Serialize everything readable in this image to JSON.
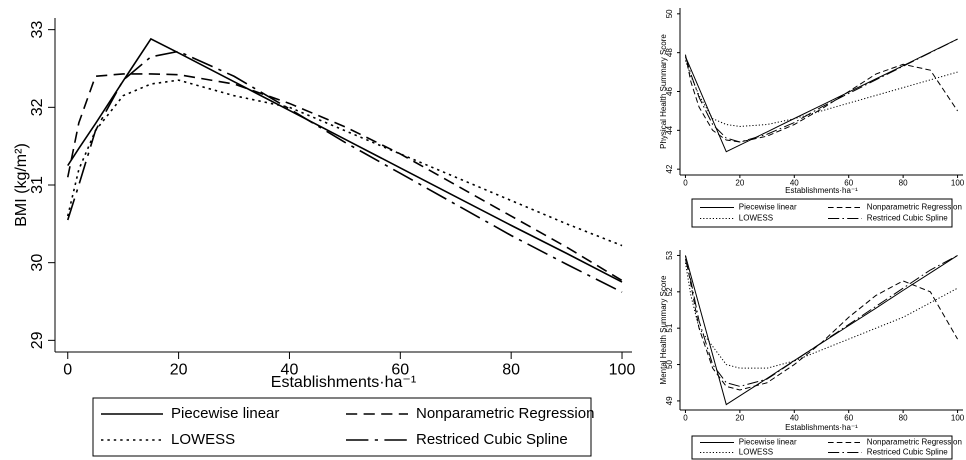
{
  "chart_data": [
    {
      "type": "line",
      "y_label": "BMI (kg/m²)",
      "x_label": "Establishments·ha⁻¹",
      "x": [
        0,
        2,
        5,
        10,
        15,
        20,
        30,
        40,
        50,
        60,
        70,
        80,
        90,
        100
      ],
      "xlim": [
        -2.3,
        101.8
      ],
      "xticks": [
        0,
        20,
        40,
        60,
        80,
        100
      ],
      "ylim": [
        28.85,
        33.15
      ],
      "yticks": [
        29,
        30,
        31,
        32,
        33
      ],
      "series": [
        {
          "name": "Piecewise linear",
          "color": "#000000",
          "dash": "solid",
          "values": [
            31.25,
            31.47,
            31.79,
            32.34,
            32.88,
            32.7,
            32.33,
            31.96,
            31.59,
            31.22,
            30.85,
            30.48,
            30.12,
            29.75
          ]
        },
        {
          "name": "Nonparametric Regression",
          "color": "#000000",
          "dash": "dashed",
          "values": [
            31.1,
            31.8,
            32.4,
            32.43,
            32.43,
            32.42,
            32.3,
            32.05,
            31.75,
            31.4,
            31.0,
            30.6,
            30.2,
            29.77
          ]
        },
        {
          "name": "LOWESS",
          "color": "#000000",
          "dash": "dotted",
          "values": [
            30.6,
            31.2,
            31.7,
            32.15,
            32.3,
            32.35,
            32.15,
            32.0,
            31.7,
            31.4,
            31.1,
            30.8,
            30.5,
            30.22
          ]
        },
        {
          "name": "Restriced Cubic Spline",
          "color": "#000000",
          "dash": "dashdot",
          "values": [
            30.55,
            31.0,
            31.7,
            32.35,
            32.65,
            32.72,
            32.4,
            31.98,
            31.55,
            31.15,
            30.75,
            30.35,
            29.98,
            29.62
          ]
        }
      ]
    },
    {
      "type": "line",
      "y_label": "Physical Health Summary Score",
      "x_label": "Establishments·ha⁻¹",
      "x": [
        0,
        2,
        5,
        10,
        15,
        20,
        30,
        40,
        50,
        60,
        70,
        80,
        90,
        100
      ],
      "xlim": [
        -2,
        102
      ],
      "xticks": [
        0,
        20,
        40,
        60,
        80,
        100
      ],
      "ylim": [
        41.7,
        50.3
      ],
      "yticks": [
        42,
        44,
        46,
        48,
        50
      ],
      "series": [
        {
          "name": "Piecewise linear",
          "color": "#000000",
          "dash": "solid",
          "values": [
            47.8,
            47.15,
            46.17,
            44.53,
            42.9,
            43.24,
            43.92,
            44.61,
            45.29,
            45.97,
            46.65,
            47.33,
            48.02,
            48.7
          ]
        },
        {
          "name": "Nonparametric Regression",
          "color": "#000000",
          "dash": "dashed",
          "values": [
            47.9,
            46.5,
            45.2,
            44.0,
            43.5,
            43.4,
            43.7,
            44.3,
            45.1,
            46.0,
            46.9,
            47.4,
            47.1,
            45.0
          ]
        },
        {
          "name": "LOWESS",
          "color": "#000000",
          "dash": "dotted",
          "values": [
            47.6,
            46.8,
            45.8,
            44.6,
            44.3,
            44.2,
            44.3,
            44.6,
            45.0,
            45.4,
            45.8,
            46.2,
            46.6,
            47.0
          ]
        },
        {
          "name": "Restriced Cubic Spline",
          "color": "#000000",
          "dash": "dashdot",
          "values": [
            47.8,
            46.9,
            45.7,
            44.3,
            43.6,
            43.4,
            43.8,
            44.4,
            45.2,
            45.9,
            46.6,
            47.3,
            48.0,
            48.7
          ]
        }
      ]
    },
    {
      "type": "line",
      "y_label": "Mental Health Summary Score",
      "x_label": "Establishments·ha⁻¹",
      "x": [
        0,
        2,
        5,
        10,
        15,
        20,
        30,
        40,
        50,
        60,
        70,
        80,
        90,
        100
      ],
      "xlim": [
        -2,
        102
      ],
      "xticks": [
        0,
        20,
        40,
        60,
        80,
        100
      ],
      "ylim": [
        48.75,
        53.15
      ],
      "yticks": [
        49,
        50,
        51,
        52,
        53
      ],
      "series": [
        {
          "name": "Piecewise linear",
          "color": "#000000",
          "dash": "solid",
          "values": [
            53.0,
            52.45,
            51.63,
            50.27,
            48.9,
            49.14,
            49.62,
            50.11,
            50.59,
            51.07,
            51.55,
            52.04,
            52.52,
            53.0
          ]
        },
        {
          "name": "Nonparametric Regression",
          "color": "#000000",
          "dash": "dashed",
          "values": [
            53.0,
            52.2,
            51.0,
            49.9,
            49.4,
            49.3,
            49.5,
            50.0,
            50.6,
            51.3,
            51.9,
            52.3,
            52.0,
            50.7
          ]
        },
        {
          "name": "LOWESS",
          "color": "#000000",
          "dash": "dotted",
          "values": [
            52.8,
            51.9,
            51.0,
            50.5,
            50.0,
            49.9,
            49.9,
            50.1,
            50.4,
            50.7,
            51.0,
            51.3,
            51.7,
            52.1
          ]
        },
        {
          "name": "Restriced Cubic Spline",
          "color": "#000000",
          "dash": "dashdot",
          "values": [
            52.9,
            52.3,
            51.2,
            50.0,
            49.5,
            49.4,
            49.6,
            50.1,
            50.6,
            51.1,
            51.6,
            52.1,
            52.6,
            53.0
          ]
        }
      ]
    }
  ]
}
